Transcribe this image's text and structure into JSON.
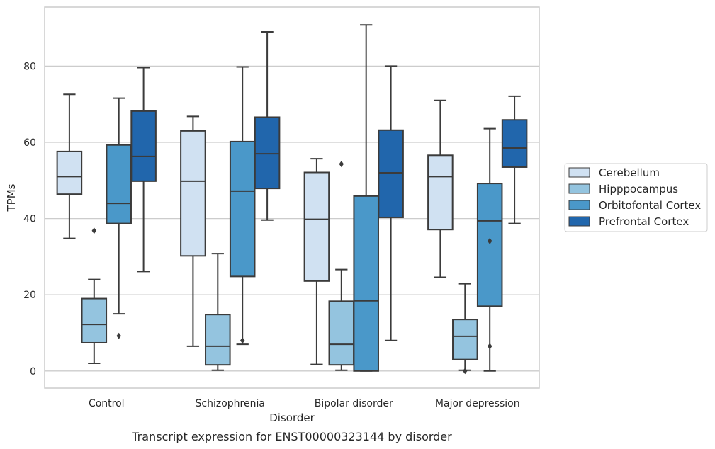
{
  "chart_data": {
    "type": "box",
    "caption": "Transcript expression for ENST00000323144 by disorder",
    "xlabel": "Disorder",
    "ylabel": "TPMs",
    "ylim": [
      -4.5,
      95.5
    ],
    "yticks": [
      0,
      20,
      40,
      60,
      80
    ],
    "grid": "horizontal",
    "legend_position": "right",
    "categories": [
      "Control",
      "Schizophrenia",
      "Bipolar disorder",
      "Major depression"
    ],
    "series": [
      {
        "name": "Cerebellum",
        "color": "#d0e1f2",
        "boxes": [
          {
            "whisker_low": 34.8,
            "q1": 46.4,
            "median": 51.0,
            "q3": 57.6,
            "whisker_high": 72.6,
            "outliers": []
          },
          {
            "whisker_low": 6.5,
            "q1": 30.2,
            "median": 49.8,
            "q3": 63.0,
            "whisker_high": 66.8,
            "outliers": []
          },
          {
            "whisker_low": 1.7,
            "q1": 23.6,
            "median": 39.8,
            "q3": 52.1,
            "whisker_high": 55.7,
            "outliers": []
          },
          {
            "whisker_low": 24.6,
            "q1": 37.1,
            "median": 51.0,
            "q3": 56.6,
            "whisker_high": 71.0,
            "outliers": []
          }
        ]
      },
      {
        "name": "Hipppocampus",
        "color": "#94c4df",
        "boxes": [
          {
            "whisker_low": 2.0,
            "q1": 7.4,
            "median": 12.2,
            "q3": 19.0,
            "whisker_high": 24.0,
            "outliers": [
              36.8
            ]
          },
          {
            "whisker_low": 0.2,
            "q1": 1.6,
            "median": 6.5,
            "q3": 14.8,
            "whisker_high": 30.8,
            "outliers": []
          },
          {
            "whisker_low": 0.2,
            "q1": 1.6,
            "median": 7.0,
            "q3": 18.3,
            "whisker_high": 26.6,
            "outliers": [
              54.3
            ]
          },
          {
            "whisker_low": 0.2,
            "q1": 3.0,
            "median": 9.1,
            "q3": 13.5,
            "whisker_high": 22.9,
            "outliers": [
              0.0
            ]
          }
        ]
      },
      {
        "name": "Orbitofontal Cortex",
        "color": "#4a98c9",
        "boxes": [
          {
            "whisker_low": 15.0,
            "q1": 38.7,
            "median": 44.0,
            "q3": 59.3,
            "whisker_high": 71.6,
            "outliers": [
              9.2
            ]
          },
          {
            "whisker_low": 7.0,
            "q1": 24.8,
            "median": 47.2,
            "q3": 60.2,
            "whisker_high": 79.8,
            "outliers": [
              8.0
            ]
          },
          {
            "whisker_low": 0.0,
            "q1": 0.0,
            "median": 18.4,
            "q3": 45.9,
            "whisker_high": 90.8,
            "outliers": []
          },
          {
            "whisker_low": 0.0,
            "q1": 17.0,
            "median": 39.4,
            "q3": 49.2,
            "whisker_high": 63.6,
            "outliers": [
              6.5,
              34.1
            ]
          }
        ]
      },
      {
        "name": "Prefrontal Cortex",
        "color": "#2166ac",
        "boxes": [
          {
            "whisker_low": 26.1,
            "q1": 49.8,
            "median": 56.3,
            "q3": 68.2,
            "whisker_high": 79.6,
            "outliers": []
          },
          {
            "whisker_low": 39.6,
            "q1": 47.9,
            "median": 57.0,
            "q3": 66.6,
            "whisker_high": 89.0,
            "outliers": []
          },
          {
            "whisker_low": 8.0,
            "q1": 40.3,
            "median": 52.0,
            "q3": 63.2,
            "whisker_high": 80.0,
            "outliers": []
          },
          {
            "whisker_low": 38.7,
            "q1": 53.5,
            "median": 58.5,
            "q3": 65.9,
            "whisker_high": 72.1,
            "outliers": []
          }
        ]
      }
    ]
  }
}
